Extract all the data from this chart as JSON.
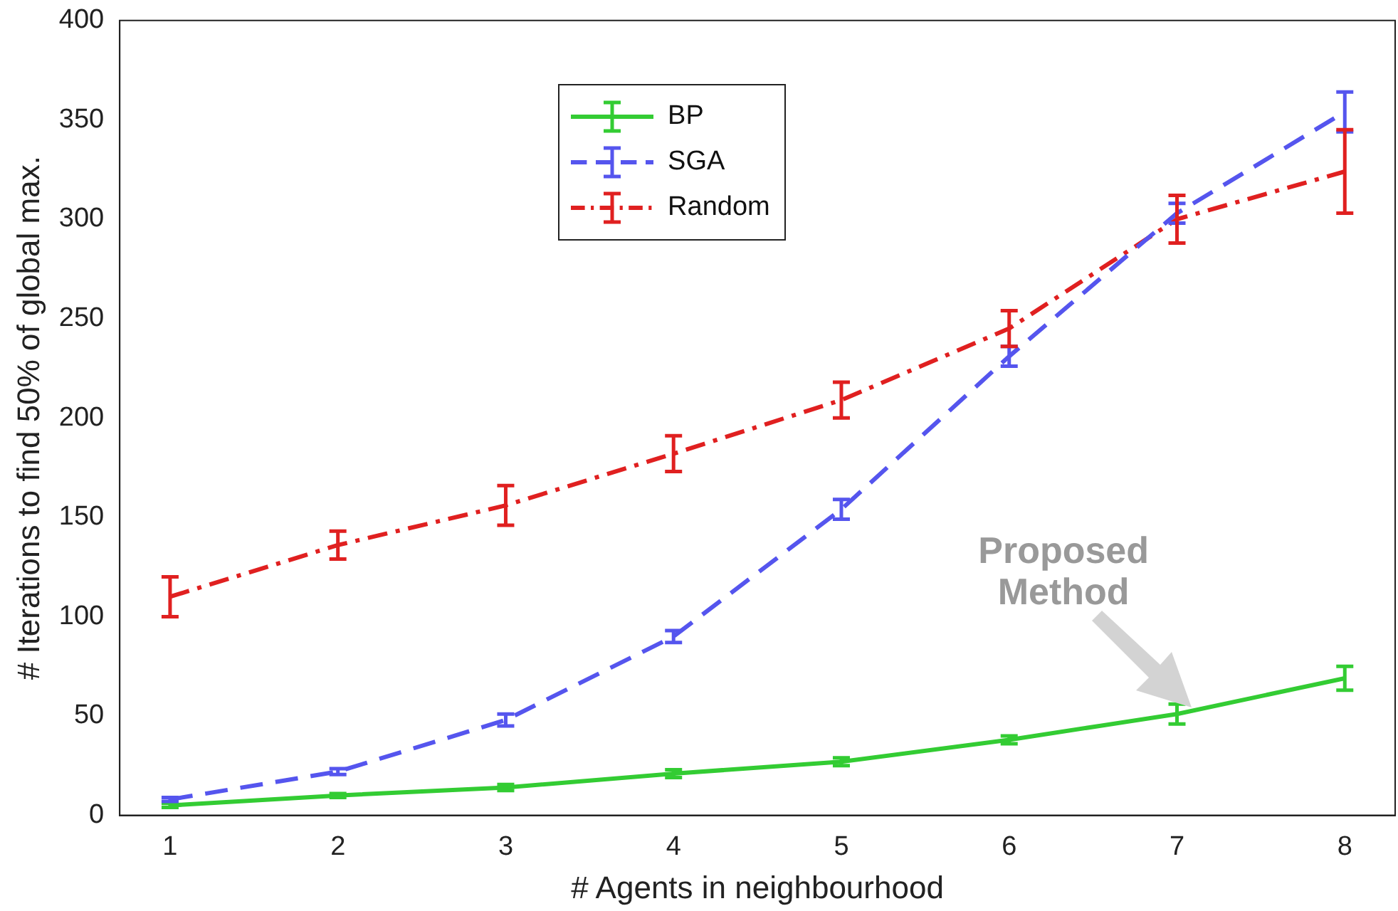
{
  "chart_data": {
    "type": "line",
    "xlabel": "# Agents in neighbourhood",
    "ylabel": "# Iterations to find 50% of global max.",
    "x": [
      1,
      2,
      3,
      4,
      5,
      6,
      7,
      8
    ],
    "xlim": [
      0.7,
      8.3
    ],
    "xticks": [
      1,
      2,
      3,
      4,
      5,
      6,
      7,
      8
    ],
    "ylim": [
      0,
      400
    ],
    "yticks": [
      0,
      50,
      100,
      150,
      200,
      250,
      300,
      350,
      400
    ],
    "grid": false,
    "legend": "top",
    "series": [
      {
        "name": "BP",
        "color": "#33cc33",
        "line_style": "solid",
        "values": [
          5,
          10,
          14,
          21,
          27,
          38,
          51,
          69
        ],
        "errors": [
          1,
          1,
          1.5,
          2,
          2,
          2,
          5,
          6
        ]
      },
      {
        "name": "SGA",
        "color": "#5555ee",
        "line_style": "dashed",
        "values": [
          8,
          22,
          48,
          90,
          154,
          231,
          303,
          354
        ],
        "errors": [
          1,
          1.5,
          3,
          3,
          5,
          5,
          5,
          10
        ]
      },
      {
        "name": "Random",
        "color": "#e02020",
        "line_style": "dashdot",
        "values": [
          110,
          136,
          156,
          182,
          209,
          245,
          300,
          324
        ],
        "errors": [
          10,
          7,
          10,
          9,
          9,
          9,
          12,
          21
        ]
      }
    ],
    "annotations": [
      "Proposed\nMethod"
    ]
  }
}
